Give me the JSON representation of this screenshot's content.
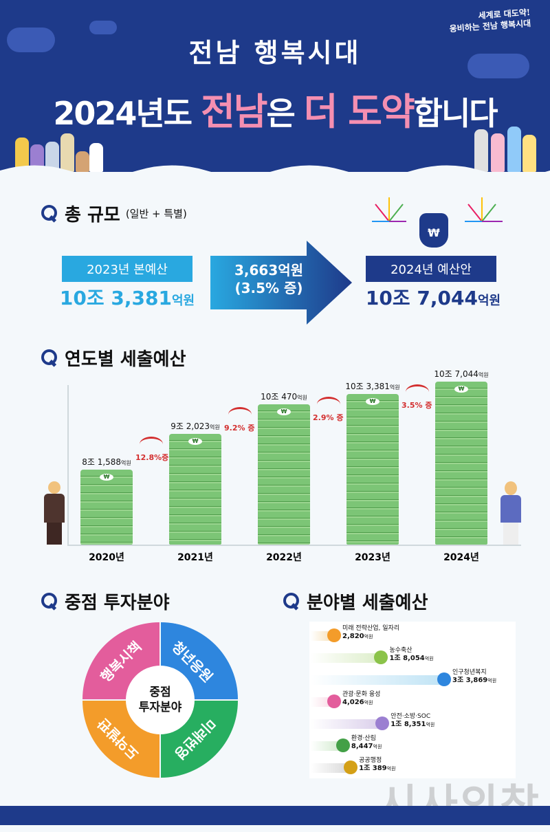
{
  "header": {
    "subtitle": "전남 행복시대",
    "title_pre": "2024년도 ",
    "title_pink1": "전남",
    "title_mid": "은 ",
    "title_pink2": "더 도약",
    "title_post": "합니다",
    "slogan_line1": "세계로 대도약!",
    "slogan_line2": "웅비하는 전남 행복시대"
  },
  "total": {
    "section_title": "총 규모",
    "section_sub": "(일반 + 특별)",
    "prev_label": "2023년 본예산",
    "prev_value": "10조 3,381",
    "prev_unit": "억원",
    "increase_line1": "3,663억원",
    "increase_line2": "(3.5% 증)",
    "new_label": "2024년 예산안",
    "new_value": "10조 7,044",
    "new_unit": "억원",
    "bag_symbol": "₩"
  },
  "yearly": {
    "section_title": "연도별 세출예산",
    "won_symbol": "₩",
    "labels": [
      {
        "main": "8조 1,588",
        "unit": "억원"
      },
      {
        "main": "9조 2,023",
        "unit": "억원"
      },
      {
        "main": "10조 470",
        "unit": "억원"
      },
      {
        "main": "10조 3,381",
        "unit": "억원"
      },
      {
        "main": "10조 7,044",
        "unit": "억원"
      }
    ],
    "growth": [
      "12.8%증",
      "9.2% 증",
      "2.9% 증",
      "3.5% 증"
    ]
  },
  "focus": {
    "section_title": "중점 투자분야",
    "center": "중점\n투자분야",
    "quadrants": [
      "행복시책",
      "청년응원",
      "도약발판",
      "미래번영"
    ]
  },
  "sector": {
    "section_title": "분야별 세출예산",
    "items": [
      {
        "name": "미래 전략산업, 일자리",
        "value": "2,820",
        "unit": "억원",
        "color": "#f5deb3"
      },
      {
        "name": "농수축산",
        "value": "1조 8,054",
        "unit": "억원",
        "color": "#dcedc8"
      },
      {
        "name": "인구청년복지",
        "value": "3조 3,869",
        "unit": "억원",
        "color": "#bfe3f5"
      },
      {
        "name": "관광·문화 융성",
        "value": "4,026",
        "unit": "억원",
        "color": "#f8d7e3"
      },
      {
        "name": "안전·소방·SOC",
        "value": "1조 8,351",
        "unit": "억원",
        "color": "#d9cdea"
      },
      {
        "name": "환경·산림",
        "value": "8,447",
        "unit": "억원",
        "color": "#cde8c9"
      },
      {
        "name": "공공행정",
        "value": "1조 389",
        "unit": "억원",
        "color": "#d6d6d6"
      }
    ]
  },
  "watermark": "시사의창",
  "chart_data": [
    {
      "type": "bar",
      "title": "연도별 세출예산",
      "categories": [
        "2020년",
        "2021년",
        "2022년",
        "2023년",
        "2024년"
      ],
      "values": [
        81588,
        92023,
        100470,
        103381,
        107044
      ],
      "value_labels": [
        "8조 1,588억원",
        "9조 2,023억원",
        "10조 470억원",
        "10조 3,381억원",
        "10조 7,044억원"
      ],
      "growth": [
        "12.8%증",
        "9.2% 증",
        "2.9% 증",
        "3.5% 증"
      ],
      "xlabel": "",
      "ylabel": "",
      "colors": {
        "bar": "#6fbf6a"
      }
    },
    {
      "type": "bar",
      "title": "분야별 세출예산",
      "orientation": "horizontal",
      "categories": [
        "미래 전략산업, 일자리",
        "농수축산",
        "인구청년복지",
        "관광·문화 융성",
        "안전·소방·SOC",
        "환경·산림",
        "공공행정"
      ],
      "values": [
        2820,
        18054,
        33869,
        4026,
        18351,
        8447,
        10389
      ]
    }
  ]
}
